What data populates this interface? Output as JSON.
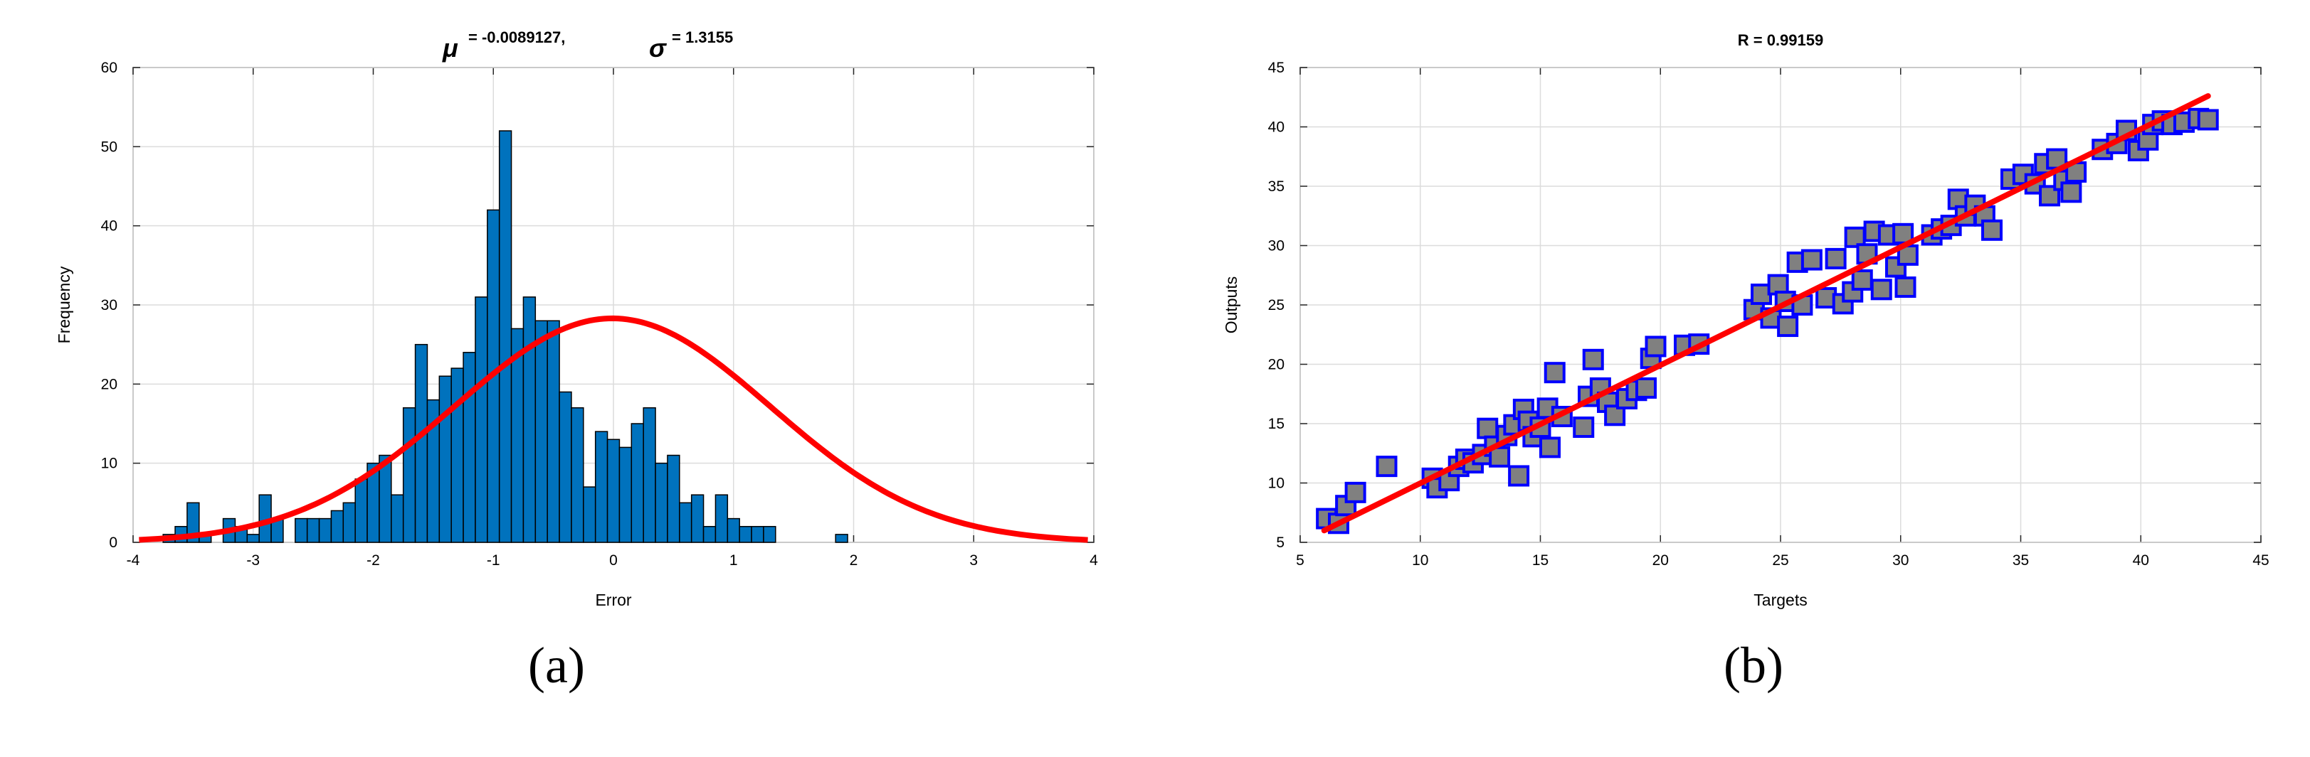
{
  "chart_data": [
    {
      "type": "bar",
      "panel_label": "(a)",
      "title": {
        "mu_symbol": "μ",
        "mu_text": "= -0.0089127,",
        "sigma_symbol": "σ",
        "sigma_text": "= 1.3155"
      },
      "xlabel": "Error",
      "ylabel": "Frequency",
      "xlim": [
        -4,
        4
      ],
      "ylim": [
        0,
        60
      ],
      "xticks": [
        "-4",
        "-3",
        "-2",
        "-1",
        "0",
        "1",
        "2",
        "3",
        "4"
      ],
      "yticks": [
        "0",
        "10",
        "20",
        "30",
        "40",
        "50",
        "60"
      ],
      "grid": true,
      "bin_start": -3.95,
      "bin_width": 0.1,
      "values": [
        0,
        0,
        1,
        2,
        5,
        1,
        0,
        3,
        2,
        1,
        6,
        3,
        0,
        3,
        3,
        3,
        4,
        5,
        8,
        10,
        11,
        6,
        17,
        25,
        18,
        21,
        22,
        24,
        31,
        42,
        52,
        27,
        31,
        28,
        28,
        19,
        17,
        7,
        14,
        13,
        12,
        15,
        17,
        10,
        11,
        5,
        6,
        2,
        6,
        3,
        2,
        2,
        2,
        0,
        0,
        0,
        0,
        0,
        1,
        0
      ],
      "bar_color": "#0072bd",
      "fit_curve": {
        "type": "normal",
        "mean": -0.0089127,
        "sigma": 1.3155,
        "peak": 28.3,
        "color": "#ff0000"
      }
    },
    {
      "type": "scatter",
      "panel_label": "(b)",
      "title": "R = 0.99159",
      "xlabel": "Targets",
      "ylabel": "Outputs",
      "xlim": [
        5,
        45
      ],
      "ylim": [
        5,
        45
      ],
      "xticks": [
        "5",
        "10",
        "15",
        "20",
        "25",
        "30",
        "35",
        "40",
        "45"
      ],
      "yticks": [
        "5",
        "10",
        "15",
        "20",
        "25",
        "30",
        "35",
        "40",
        "45"
      ],
      "grid": true,
      "marker_fill": "#808080",
      "marker_edge": "#0000ff",
      "points": [
        [
          6.1,
          7.0
        ],
        [
          6.6,
          6.6
        ],
        [
          6.9,
          8.1
        ],
        [
          7.3,
          9.2
        ],
        [
          8.6,
          11.4
        ],
        [
          10.5,
          10.4
        ],
        [
          10.7,
          9.6
        ],
        [
          11.2,
          10.2
        ],
        [
          11.6,
          11.4
        ],
        [
          11.9,
          12.0
        ],
        [
          12.2,
          11.7
        ],
        [
          12.6,
          12.4
        ],
        [
          12.8,
          14.6
        ],
        [
          13.1,
          13.1
        ],
        [
          13.3,
          12.2
        ],
        [
          13.6,
          14.0
        ],
        [
          13.9,
          14.9
        ],
        [
          14.1,
          10.6
        ],
        [
          14.3,
          16.2
        ],
        [
          14.5,
          15.2
        ],
        [
          14.7,
          13.9
        ],
        [
          15.0,
          14.7
        ],
        [
          15.3,
          16.3
        ],
        [
          15.4,
          13.0
        ],
        [
          15.6,
          19.3
        ],
        [
          15.9,
          15.6
        ],
        [
          16.8,
          14.7
        ],
        [
          17.0,
          17.3
        ],
        [
          17.2,
          20.4
        ],
        [
          17.5,
          18.0
        ],
        [
          17.8,
          16.8
        ],
        [
          18.1,
          15.7
        ],
        [
          18.6,
          17.1
        ],
        [
          19.0,
          17.8
        ],
        [
          19.4,
          18.0
        ],
        [
          19.6,
          20.5
        ],
        [
          19.8,
          21.5
        ],
        [
          21.0,
          21.6
        ],
        [
          21.6,
          21.7
        ],
        [
          23.9,
          24.6
        ],
        [
          24.2,
          25.9
        ],
        [
          24.6,
          23.9
        ],
        [
          24.9,
          26.7
        ],
        [
          25.2,
          25.3
        ],
        [
          25.3,
          23.2
        ],
        [
          25.7,
          28.6
        ],
        [
          25.9,
          25.0
        ],
        [
          26.3,
          28.8
        ],
        [
          26.9,
          25.6
        ],
        [
          27.3,
          28.9
        ],
        [
          27.6,
          25.1
        ],
        [
          28.0,
          26.1
        ],
        [
          28.1,
          30.7
        ],
        [
          28.4,
          27.1
        ],
        [
          28.6,
          29.3
        ],
        [
          28.9,
          31.2
        ],
        [
          29.2,
          26.3
        ],
        [
          29.5,
          30.9
        ],
        [
          29.8,
          28.2
        ],
        [
          30.1,
          31.0
        ],
        [
          30.3,
          29.2
        ],
        [
          30.2,
          26.5
        ],
        [
          31.3,
          30.9
        ],
        [
          31.7,
          31.4
        ],
        [
          32.1,
          31.7
        ],
        [
          32.4,
          33.9
        ],
        [
          32.7,
          32.5
        ],
        [
          33.1,
          33.4
        ],
        [
          33.5,
          32.5
        ],
        [
          33.8,
          31.3
        ],
        [
          34.6,
          35.6
        ],
        [
          35.1,
          36.0
        ],
        [
          35.6,
          35.2
        ],
        [
          36.0,
          36.9
        ],
        [
          36.2,
          34.2
        ],
        [
          36.5,
          37.3
        ],
        [
          36.8,
          35.5
        ],
        [
          37.1,
          34.5
        ],
        [
          37.3,
          36.2
        ],
        [
          38.4,
          38.1
        ],
        [
          39.0,
          38.6
        ],
        [
          39.4,
          39.7
        ],
        [
          39.9,
          38.0
        ],
        [
          40.3,
          38.9
        ],
        [
          40.5,
          40.2
        ],
        [
          40.9,
          40.5
        ],
        [
          41.3,
          40.2
        ],
        [
          41.8,
          40.4
        ],
        [
          42.4,
          40.7
        ],
        [
          42.8,
          40.6
        ]
      ],
      "fit_line": {
        "x": [
          6.0,
          42.8
        ],
        "y": [
          6.0,
          42.6
        ],
        "color": "#ff0000"
      }
    }
  ]
}
